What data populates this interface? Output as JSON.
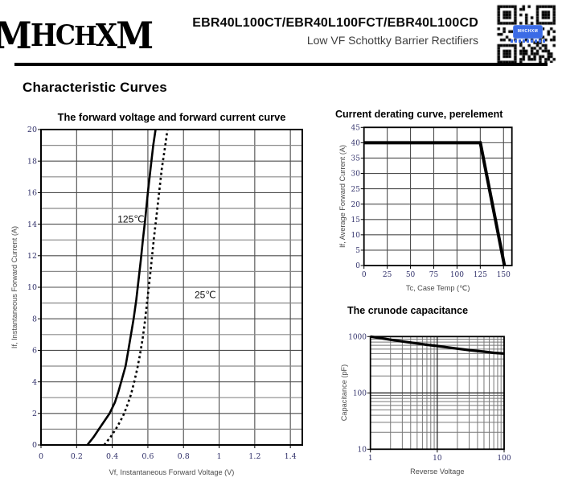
{
  "header": {
    "logo_text": "MHCHXM",
    "title": "EBR40L100CT/EBR40L100FCT/EBR40L100CD",
    "subtitle": "Low VF Schottky Barrier Rectifiers",
    "qr_icon": "qr-code",
    "qr_badge_text": "MHCHXM",
    "qr_badge_color": "#3b6be6"
  },
  "section_title": "Characteristic Curves",
  "colors": {
    "tick_label": "#32326b",
    "axis_label": "#4a4a4a",
    "grid_minor": "#8a8a8a",
    "grid_major": "#4d4d4d",
    "plot_border": "#000000",
    "curve": "#000000",
    "title_text": "#000000"
  },
  "chart_data": [
    {
      "id": "vf-if",
      "type": "line",
      "title": "The forward voltage and forward current curve",
      "xlabel": "Vf, Instantaneous Forward Voltage (V)",
      "ylabel": "If, Instantaneous Forward Current (A)",
      "xlim": [
        0,
        1.467
      ],
      "ylim": [
        0,
        20
      ],
      "xscale": "linear",
      "yscale": "linear",
      "xticks": [
        0,
        0.2,
        0.4,
        0.6,
        0.8,
        1,
        1.2,
        1.4
      ],
      "xtick_labels": [
        "0",
        "0.2",
        "0.4",
        "0.6",
        "0.8",
        "1",
        "1.2",
        "1.4"
      ],
      "yticks": [
        0,
        2,
        4,
        6,
        8,
        10,
        12,
        14,
        16,
        18,
        20
      ],
      "ytick_labels": [
        "0",
        "2",
        "4",
        "6",
        "8",
        "10",
        "12",
        "14",
        "16",
        "18",
        "20"
      ],
      "y_minor_step": 1,
      "grid": "both",
      "legend_position": "none",
      "series": [
        {
          "name": "125℃",
          "style": "solid",
          "points": [
            [
              0.26,
              0
            ],
            [
              0.295,
              0.5
            ],
            [
              0.325,
              1
            ],
            [
              0.355,
              1.5
            ],
            [
              0.385,
              2
            ],
            [
              0.415,
              2.7
            ],
            [
              0.435,
              3.4
            ],
            [
              0.455,
              4.2
            ],
            [
              0.475,
              5
            ],
            [
              0.49,
              6
            ],
            [
              0.505,
              7
            ],
            [
              0.52,
              8
            ],
            [
              0.535,
              9.2
            ],
            [
              0.548,
              10.5
            ],
            [
              0.56,
              11.7
            ],
            [
              0.572,
              13
            ],
            [
              0.585,
              14.3
            ],
            [
              0.6,
              16
            ],
            [
              0.615,
              17.5
            ],
            [
              0.63,
              19
            ],
            [
              0.643,
              20
            ]
          ]
        },
        {
          "name": "25℃",
          "style": "dashed",
          "points": [
            [
              0.355,
              0
            ],
            [
              0.39,
              0.5
            ],
            [
              0.42,
              1
            ],
            [
              0.445,
              1.5
            ],
            [
              0.467,
              2
            ],
            [
              0.487,
              2.6
            ],
            [
              0.505,
              3.2
            ],
            [
              0.523,
              4
            ],
            [
              0.54,
              4.8
            ],
            [
              0.555,
              5.7
            ],
            [
              0.57,
              6.7
            ],
            [
              0.583,
              7.8
            ],
            [
              0.595,
              9
            ],
            [
              0.607,
              10.2
            ],
            [
              0.62,
              11.6
            ],
            [
              0.633,
              13
            ],
            [
              0.648,
              14.5
            ],
            [
              0.663,
              16
            ],
            [
              0.678,
              17.5
            ],
            [
              0.695,
              18.8
            ],
            [
              0.71,
              20
            ]
          ]
        }
      ],
      "annotations": [
        {
          "text": "125℃",
          "x": 0.43,
          "y": 14.1
        },
        {
          "text": "25℃",
          "x": 0.862,
          "y": 9.3
        }
      ]
    },
    {
      "id": "derating",
      "type": "line",
      "title": "Current derating curve, perelement",
      "xlabel": "Tc, Case Temp (℃)",
      "ylabel": "If, Average Forward Current (A)",
      "xlim": [
        0,
        159
      ],
      "ylim": [
        0,
        45
      ],
      "xscale": "linear",
      "yscale": "linear",
      "xticks": [
        0,
        25,
        50,
        75,
        100,
        125,
        150
      ],
      "xtick_labels": [
        "0",
        "25",
        "50",
        "75",
        "100",
        "125",
        "150"
      ],
      "yticks": [
        0,
        5,
        10,
        15,
        20,
        25,
        30,
        35,
        40,
        45
      ],
      "ytick_labels": [
        "0",
        "5",
        "10",
        "15",
        "20",
        "25",
        "30",
        "35",
        "40",
        "45"
      ],
      "grid": "both",
      "legend_position": "none",
      "series": [
        {
          "name": "derating",
          "style": "solid-thick",
          "points": [
            [
              0,
              40
            ],
            [
              125,
              40
            ],
            [
              151,
              0
            ]
          ]
        }
      ],
      "annotations": []
    },
    {
      "id": "capacitance",
      "type": "line",
      "title": "The crunode capacitance",
      "xlabel": "Reverse Voltage",
      "ylabel": "Capacitance (pF)",
      "xlim": [
        1,
        100
      ],
      "ylim": [
        10,
        1000
      ],
      "xscale": "log",
      "yscale": "log",
      "xticks": [
        1,
        10,
        100
      ],
      "xtick_labels": [
        "1",
        "10",
        "100"
      ],
      "yticks": [
        10,
        100,
        1000
      ],
      "ytick_labels": [
        "10",
        "100",
        "1000"
      ],
      "grid": "log-both",
      "legend_position": "none",
      "series": [
        {
          "name": "junction-capacitance",
          "style": "solid-thick",
          "points": [
            [
              1,
              1000
            ],
            [
              1.5,
              930
            ],
            [
              2,
              880
            ],
            [
              3,
              820
            ],
            [
              5,
              755
            ],
            [
              7,
              715
            ],
            [
              10,
              680
            ],
            [
              15,
              640
            ],
            [
              20,
              610
            ],
            [
              30,
              575
            ],
            [
              50,
              540
            ],
            [
              70,
              515
            ],
            [
              100,
              500
            ]
          ]
        }
      ],
      "annotations": []
    }
  ]
}
